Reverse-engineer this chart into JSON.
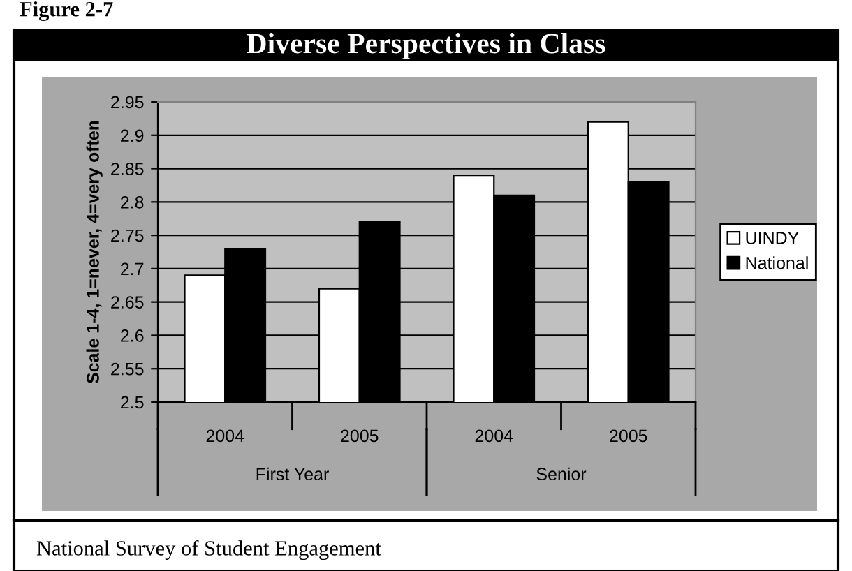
{
  "chart_data": {
    "type": "bar",
    "title": "Diverse Perspectives in Class",
    "ylabel": "Scale 1-4, 1=never, 4=very often",
    "categories": [
      "2004",
      "2005",
      "2004",
      "2005"
    ],
    "series": [
      {
        "name": "UINDY",
        "color": "#ffffff",
        "values": [
          2.69,
          2.67,
          2.84,
          2.92
        ]
      },
      {
        "name": "National",
        "color": "#000000",
        "values": [
          2.73,
          2.77,
          2.81,
          2.83
        ]
      }
    ],
    "ylim": [
      2.5,
      2.95
    ],
    "yticks": [
      2.5,
      2.55,
      2.6,
      2.65,
      2.7,
      2.75,
      2.8,
      2.85,
      2.9,
      2.95
    ],
    "grid": "y",
    "legend": "right",
    "annotations": [
      "Figure 2-7",
      "First Year",
      "Senior",
      "National Survey of Student Engagement"
    ]
  }
}
